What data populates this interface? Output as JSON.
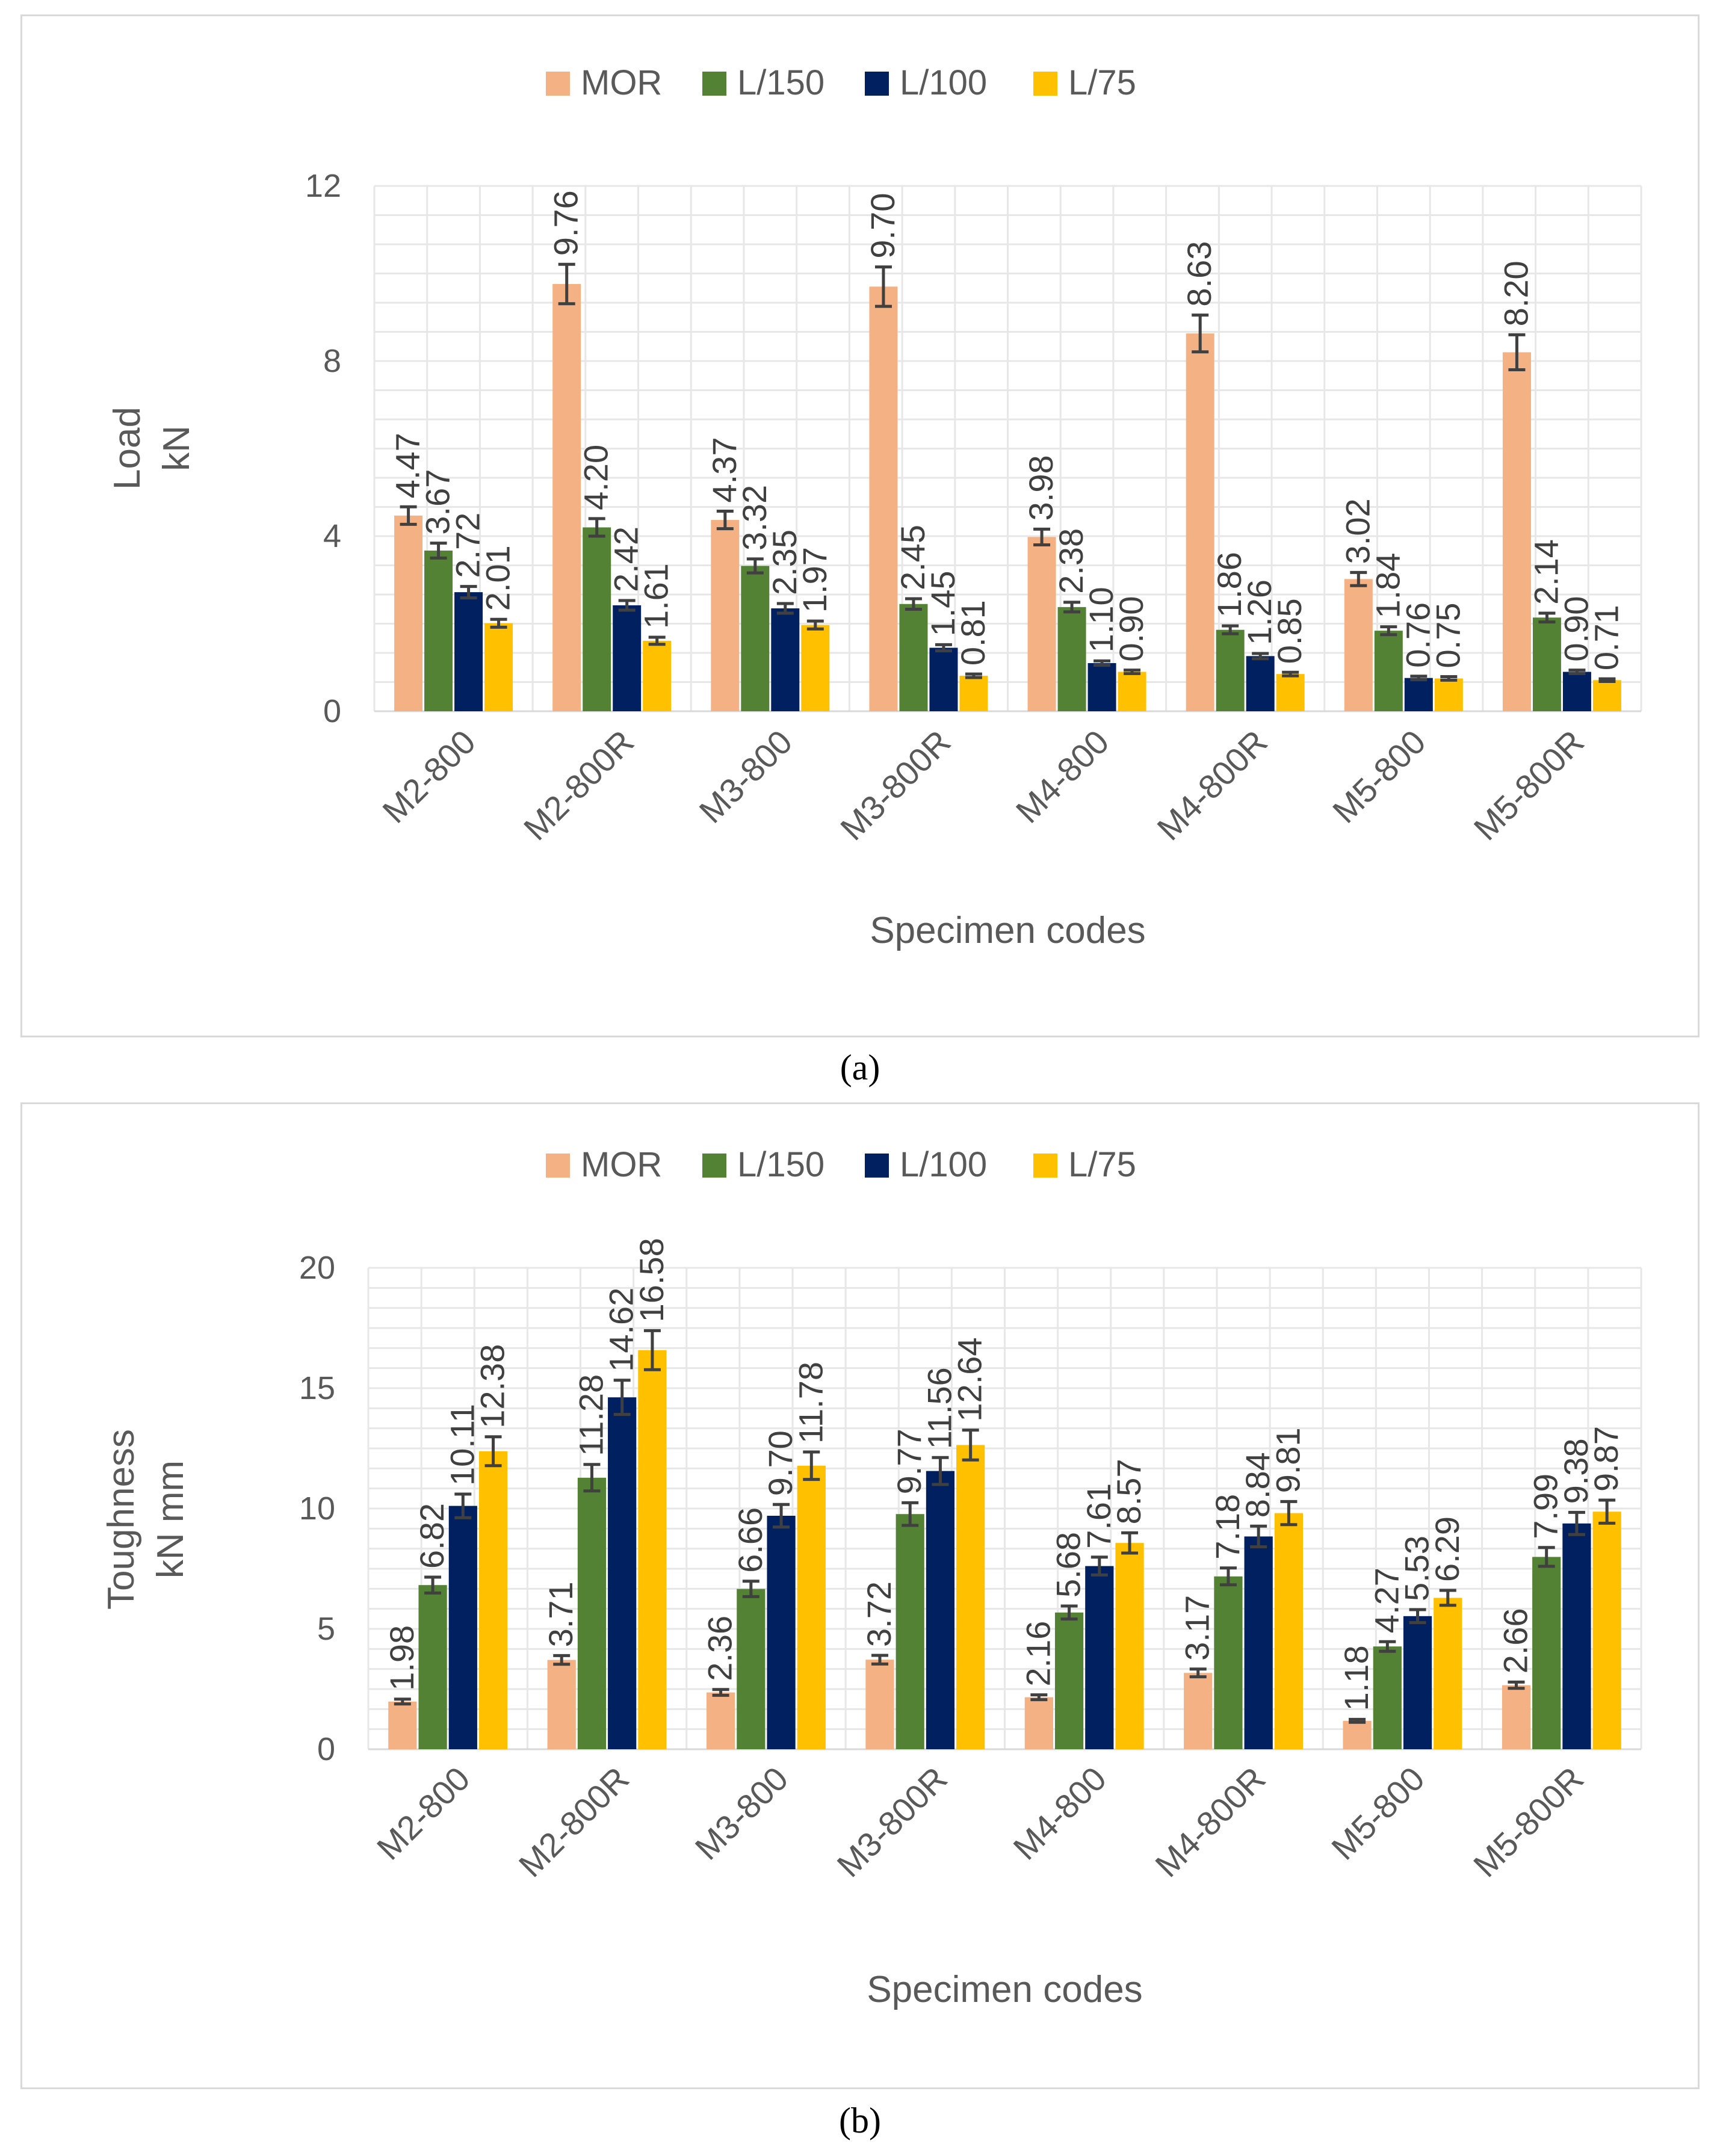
{
  "colors": {
    "MOR": "#f4b183",
    "L/150": "#548235",
    "L/100": "#002060",
    "L/75": "#ffc000",
    "grid": "#e7e7e7",
    "axis_text": "#595959",
    "error_bar": "#404040",
    "label_text": "#404040"
  },
  "captions": [
    "(a)",
    "(b)"
  ],
  "chart_data": [
    {
      "type": "bar",
      "panel": "a",
      "title": "",
      "xlabel": "Specimen codes",
      "ylabel": [
        "Load",
        "kN"
      ],
      "ylim": [
        0,
        12
      ],
      "yticks": [
        0,
        4,
        8,
        12
      ],
      "grid": true,
      "legend_position": "top",
      "categories": [
        "M2-800",
        "M2-800R",
        "M3-800",
        "M3-800R",
        "M4-800",
        "M4-800R",
        "M5-800",
        "M5-800R"
      ],
      "series": [
        {
          "name": "MOR",
          "values": [
            4.47,
            9.76,
            4.37,
            9.7,
            3.98,
            8.63,
            3.02,
            8.2
          ],
          "labels": [
            "4.47",
            "9.76",
            "4.37",
            "9.70",
            "3.98",
            "8.63",
            "3.02",
            "8.20"
          ],
          "errors": [
            0.2,
            0.45,
            0.2,
            0.45,
            0.18,
            0.42,
            0.15,
            0.4
          ]
        },
        {
          "name": "L/150",
          "values": [
            3.67,
            4.2,
            3.32,
            2.45,
            2.38,
            1.86,
            1.84,
            2.14
          ],
          "labels": [
            "3.67",
            "4.20",
            "3.32",
            "2.45",
            "2.38",
            "1.86",
            "1.84",
            "2.14"
          ],
          "errors": [
            0.17,
            0.2,
            0.16,
            0.12,
            0.11,
            0.09,
            0.09,
            0.1
          ]
        },
        {
          "name": "L/100",
          "values": [
            2.72,
            2.42,
            2.35,
            1.45,
            1.1,
            1.26,
            0.76,
            0.9
          ],
          "labels": [
            "2.72",
            "2.42",
            "2.35",
            "1.45",
            "1.10",
            "1.26",
            "0.76",
            "0.90"
          ],
          "errors": [
            0.13,
            0.11,
            0.11,
            0.07,
            0.05,
            0.06,
            0.04,
            0.04
          ]
        },
        {
          "name": "L/75",
          "values": [
            2.01,
            1.61,
            1.97,
            0.81,
            0.9,
            0.85,
            0.75,
            0.71
          ],
          "labels": [
            "2.01",
            "1.61",
            "1.97",
            "0.81",
            "0.90",
            "0.85",
            "0.75",
            "0.71"
          ],
          "errors": [
            0.09,
            0.08,
            0.09,
            0.04,
            0.04,
            0.04,
            0.04,
            0.03
          ]
        }
      ]
    },
    {
      "type": "bar",
      "panel": "b",
      "title": "",
      "xlabel": "Specimen codes",
      "ylabel": [
        "Toughness",
        "kN mm"
      ],
      "ylim": [
        0,
        20
      ],
      "yticks": [
        0,
        5,
        10,
        15,
        20
      ],
      "grid": true,
      "legend_position": "top",
      "categories": [
        "M2-800",
        "M2-800R",
        "M3-800",
        "M3-800R",
        "M4-800",
        "M4-800R",
        "M5-800",
        "M5-800R"
      ],
      "series": [
        {
          "name": "MOR",
          "values": [
            1.98,
            3.71,
            2.36,
            3.72,
            2.16,
            3.17,
            1.18,
            2.66
          ],
          "labels": [
            "1.98",
            "3.71",
            "2.36",
            "3.72",
            "2.16",
            "3.17",
            "1.18",
            "2.66"
          ],
          "errors": [
            0.1,
            0.18,
            0.12,
            0.18,
            0.1,
            0.16,
            0.06,
            0.13
          ]
        },
        {
          "name": "L/150",
          "values": [
            6.82,
            11.28,
            6.66,
            9.77,
            5.68,
            7.18,
            4.27,
            7.99
          ],
          "labels": [
            "6.82",
            "11.28",
            "6.66",
            "9.77",
            "5.68",
            "7.18",
            "4.27",
            "7.99"
          ],
          "errors": [
            0.33,
            0.55,
            0.32,
            0.47,
            0.27,
            0.35,
            0.2,
            0.39
          ]
        },
        {
          "name": "L/100",
          "values": [
            10.11,
            14.62,
            9.7,
            11.56,
            7.61,
            8.84,
            5.53,
            9.38
          ],
          "labels": [
            "10.11",
            "14.62",
            "9.70",
            "11.56",
            "7.61",
            "8.84",
            "5.53",
            "9.38"
          ],
          "errors": [
            0.49,
            0.71,
            0.47,
            0.56,
            0.37,
            0.43,
            0.27,
            0.46
          ]
        },
        {
          "name": "L/75",
          "values": [
            12.38,
            16.58,
            11.78,
            12.64,
            8.57,
            9.81,
            6.29,
            9.87
          ],
          "labels": [
            "12.38",
            "16.58",
            "11.78",
            "12.64",
            "8.57",
            "9.81",
            "6.29",
            "9.87"
          ],
          "errors": [
            0.6,
            0.81,
            0.57,
            0.62,
            0.42,
            0.48,
            0.31,
            0.48
          ]
        }
      ]
    }
  ]
}
